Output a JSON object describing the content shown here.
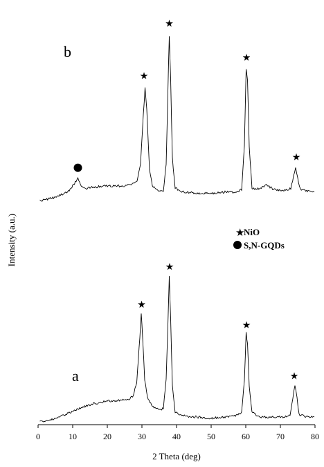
{
  "chart_data": {
    "type": "line",
    "xlabel": "2 Theta (deg)",
    "ylabel": "Intensity (a.u.)",
    "xlim": [
      0,
      80
    ],
    "xticks": [
      0,
      10,
      20,
      30,
      40,
      50,
      60,
      70,
      80
    ],
    "grid": false,
    "legend": {
      "placement": "middle-right",
      "entries": [
        {
          "label": "NiO",
          "marker": "star"
        },
        {
          "label": "S,N-GQDs",
          "marker": "circle"
        }
      ]
    },
    "series": [
      {
        "name": "a",
        "points": [
          [
            0.5,
            0.0
          ],
          [
            4,
            0.02
          ],
          [
            8,
            0.06
          ],
          [
            12,
            0.11
          ],
          [
            16,
            0.15
          ],
          [
            20,
            0.17
          ],
          [
            24,
            0.18
          ],
          [
            26.5,
            0.19
          ],
          [
            27.5,
            0.22
          ],
          [
            28.5,
            0.33
          ],
          [
            29.4,
            0.7
          ],
          [
            29.8,
            0.9
          ],
          [
            30.2,
            0.7
          ],
          [
            30.8,
            0.35
          ],
          [
            31.6,
            0.2
          ],
          [
            33,
            0.13
          ],
          [
            35,
            0.1
          ],
          [
            36.2,
            0.11
          ],
          [
            37,
            0.35
          ],
          [
            37.5,
            0.8
          ],
          [
            37.9,
            1.2
          ],
          [
            38.3,
            0.85
          ],
          [
            38.8,
            0.3
          ],
          [
            39.6,
            0.08
          ],
          [
            42,
            0.05
          ],
          [
            46,
            0.04
          ],
          [
            50,
            0.03
          ],
          [
            54,
            0.04
          ],
          [
            57,
            0.05
          ],
          [
            58.8,
            0.08
          ],
          [
            59.6,
            0.35
          ],
          [
            60.1,
            0.73
          ],
          [
            60.5,
            0.65
          ],
          [
            61.0,
            0.3
          ],
          [
            61.8,
            0.08
          ],
          [
            64,
            0.04
          ],
          [
            68,
            0.04
          ],
          [
            71,
            0.04
          ],
          [
            72.8,
            0.06
          ],
          [
            73.6,
            0.2
          ],
          [
            74.2,
            0.3
          ],
          [
            74.8,
            0.2
          ],
          [
            75.4,
            0.06
          ],
          [
            78,
            0.04
          ],
          [
            79.8,
            0.04
          ]
        ],
        "peak_markers": [
          {
            "x": 29.9,
            "y": 0.97,
            "marker": "star"
          },
          {
            "x": 38.0,
            "y": 1.28,
            "marker": "star"
          },
          {
            "x": 60.2,
            "y": 0.8,
            "marker": "star"
          },
          {
            "x": 74.0,
            "y": 0.38,
            "marker": "star"
          }
        ]
      },
      {
        "name": "b",
        "points": [
          [
            0.5,
            0.0
          ],
          [
            4,
            0.02
          ],
          [
            7,
            0.05
          ],
          [
            9,
            0.08
          ],
          [
            10.5,
            0.14
          ],
          [
            11.5,
            0.18
          ],
          [
            12.5,
            0.12
          ],
          [
            14,
            0.1
          ],
          [
            16,
            0.11
          ],
          [
            20,
            0.12
          ],
          [
            24,
            0.12
          ],
          [
            27,
            0.13
          ],
          [
            28.6,
            0.16
          ],
          [
            29.6,
            0.3
          ],
          [
            30.4,
            0.7
          ],
          [
            30.9,
            0.93
          ],
          [
            31.4,
            0.75
          ],
          [
            32.2,
            0.25
          ],
          [
            33,
            0.12
          ],
          [
            35,
            0.08
          ],
          [
            36.2,
            0.08
          ],
          [
            37,
            0.3
          ],
          [
            37.5,
            0.9
          ],
          [
            37.9,
            1.36
          ],
          [
            38.3,
            1.0
          ],
          [
            38.8,
            0.35
          ],
          [
            39.6,
            0.1
          ],
          [
            42,
            0.07
          ],
          [
            46,
            0.06
          ],
          [
            50,
            0.06
          ],
          [
            54,
            0.07
          ],
          [
            57,
            0.07
          ],
          [
            58.8,
            0.09
          ],
          [
            59.6,
            0.45
          ],
          [
            60.1,
            1.08
          ],
          [
            60.5,
            1.0
          ],
          [
            61.0,
            0.45
          ],
          [
            61.8,
            0.1
          ],
          [
            64,
            0.1
          ],
          [
            66,
            0.13
          ],
          [
            68,
            0.09
          ],
          [
            71,
            0.08
          ],
          [
            73,
            0.1
          ],
          [
            73.8,
            0.2
          ],
          [
            74.4,
            0.27
          ],
          [
            75.0,
            0.18
          ],
          [
            75.8,
            0.09
          ],
          [
            78,
            0.08
          ],
          [
            79.8,
            0.07
          ]
        ],
        "peak_markers": [
          {
            "x": 11.5,
            "y": 0.27,
            "marker": "circle"
          },
          {
            "x": 30.6,
            "y": 1.03,
            "marker": "star"
          },
          {
            "x": 37.9,
            "y": 1.46,
            "marker": "star"
          },
          {
            "x": 60.2,
            "y": 1.18,
            "marker": "star"
          },
          {
            "x": 74.6,
            "y": 0.36,
            "marker": "star"
          }
        ]
      }
    ]
  }
}
